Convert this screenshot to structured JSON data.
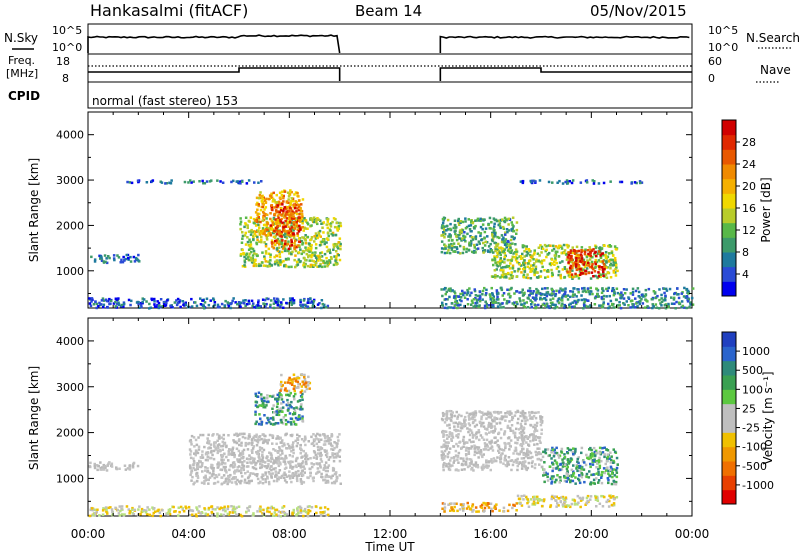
{
  "header": {
    "station": "Hankasalmi (fitACF)",
    "beam": "Beam 14",
    "date": "05/Nov/2015"
  },
  "status_panels": {
    "nsky_label": "N.Sky",
    "nsky_ticks": [
      "10^5",
      "10^0"
    ],
    "nsearch_label": "N.Search",
    "nsearch_ticks": [
      "10^5",
      "10^0"
    ],
    "freq_label_line1": "Freq.",
    "freq_label_line2": "[MHz]",
    "freq_ticks": [
      "18",
      "8"
    ],
    "nave_label": "Nave",
    "nave_ticks": [
      "60",
      "0"
    ],
    "cpid_label": "CPID",
    "cpid_text": "normal (fast stereo) 153"
  },
  "chart_data": [
    {
      "type": "heatmap",
      "name": "power",
      "ylabel": "Slant Range [km]",
      "ylim": [
        180,
        4500
      ],
      "yticks": [
        1000,
        2000,
        3000,
        4000
      ],
      "xlim": [
        0,
        24
      ],
      "data_gap_ut": [
        10,
        14
      ],
      "colorbar": {
        "label": "Power [dB]",
        "range": [
          0,
          32
        ],
        "ticks": [
          4,
          8,
          12,
          16,
          20,
          24,
          28
        ],
        "colors": [
          "#0000ee",
          "#2a4bd6",
          "#1e7a9e",
          "#3c9a6a",
          "#58b848",
          "#b8cc2a",
          "#f0d800",
          "#f5b000",
          "#f08a00",
          "#e85800",
          "#e02800",
          "#d00000"
        ]
      },
      "echo_regions": [
        {
          "ut": [
            0,
            2
          ],
          "range": [
            1200,
            1380
          ],
          "value": 6
        },
        {
          "ut": [
            0,
            9.5
          ],
          "range": [
            200,
            420
          ],
          "value": 5
        },
        {
          "ut": [
            1.5,
            7
          ],
          "range": [
            2950,
            3020
          ],
          "value": 6
        },
        {
          "ut": [
            6,
            10
          ],
          "range": [
            1100,
            2200
          ],
          "value": 14
        },
        {
          "ut": [
            6.6,
            8.5
          ],
          "range": [
            1800,
            2800
          ],
          "value": 20
        },
        {
          "ut": [
            7.2,
            8.4
          ],
          "range": [
            1500,
            2500
          ],
          "value": 26
        },
        {
          "ut": [
            14,
            17
          ],
          "range": [
            1400,
            2200
          ],
          "value": 10
        },
        {
          "ut": [
            16,
            21
          ],
          "range": [
            850,
            1600
          ],
          "value": 14
        },
        {
          "ut": [
            19,
            20.5
          ],
          "range": [
            900,
            1500
          ],
          "value": 28
        },
        {
          "ut": [
            14,
            24
          ],
          "range": [
            200,
            650
          ],
          "value": 8
        },
        {
          "ut": [
            17,
            22
          ],
          "range": [
            2950,
            3020
          ],
          "value": 6
        }
      ]
    },
    {
      "type": "heatmap",
      "name": "velocity",
      "ylabel": "Slant Range [km]",
      "ylim": [
        180,
        4500
      ],
      "yticks": [
        1000,
        2000,
        3000,
        4000
      ],
      "xlim": [
        0,
        24
      ],
      "data_gap_ut": [
        10,
        14
      ],
      "xticks": [
        "00:00",
        "04:00",
        "08:00",
        "12:00",
        "16:00",
        "20:00",
        "00:00"
      ],
      "xlabel": "Time UT",
      "colorbar": {
        "label": "Velocity [m s⁻¹]",
        "ticks": [
          "1000",
          "500",
          "100",
          "25",
          "-25",
          "-100",
          "-500",
          "-1000"
        ],
        "colors": [
          "#2040c0",
          "#2a64cc",
          "#2e8a7a",
          "#3aa052",
          "#5cc840",
          "#bfbfbf",
          "#bfbfbf",
          "#f0c000",
          "#f09800",
          "#f07000",
          "#e84000",
          "#e00000"
        ]
      },
      "echo_regions": [
        {
          "ut": [
            0,
            2
          ],
          "range": [
            1200,
            1380
          ],
          "value": "gray"
        },
        {
          "ut": [
            0,
            9.5
          ],
          "range": [
            200,
            420
          ],
          "value": "ground"
        },
        {
          "ut": [
            4,
            10
          ],
          "range": [
            900,
            2000
          ],
          "value": "gray"
        },
        {
          "ut": [
            6.6,
            8.5
          ],
          "range": [
            2200,
            2900
          ],
          "value": "positive"
        },
        {
          "ut": [
            7.6,
            8.8
          ],
          "range": [
            2900,
            3300
          ],
          "value": "negative"
        },
        {
          "ut": [
            14,
            18
          ],
          "range": [
            1200,
            2500
          ],
          "value": "gray"
        },
        {
          "ut": [
            18,
            21
          ],
          "range": [
            900,
            1700
          ],
          "value": "positive"
        },
        {
          "ut": [
            14,
            17
          ],
          "range": [
            300,
            500
          ],
          "value": "negative"
        },
        {
          "ut": [
            17,
            21
          ],
          "range": [
            400,
            650
          ],
          "value": "ground"
        }
      ]
    }
  ]
}
